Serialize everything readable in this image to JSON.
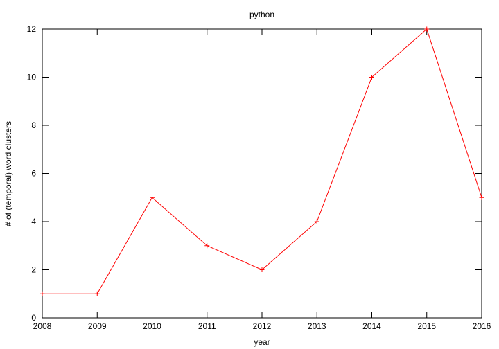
{
  "chart_data": {
    "type": "line",
    "title": "python",
    "xlabel": "year",
    "ylabel": "# of (temporal) word clusters",
    "x": [
      2008,
      2009,
      2010,
      2011,
      2012,
      2013,
      2014,
      2015,
      2016
    ],
    "series": [
      {
        "values": [
          1,
          1,
          5,
          3,
          2,
          4,
          10,
          12,
          5
        ],
        "color": "#ff0000",
        "marker": "plus"
      }
    ],
    "xlim": [
      2008,
      2016
    ],
    "ylim": [
      0,
      12
    ],
    "xticks": [
      2008,
      2009,
      2010,
      2011,
      2012,
      2013,
      2014,
      2015,
      2016
    ],
    "yticks": [
      0,
      2,
      4,
      6,
      8,
      10,
      12
    ],
    "grid": false,
    "legend": "none"
  }
}
